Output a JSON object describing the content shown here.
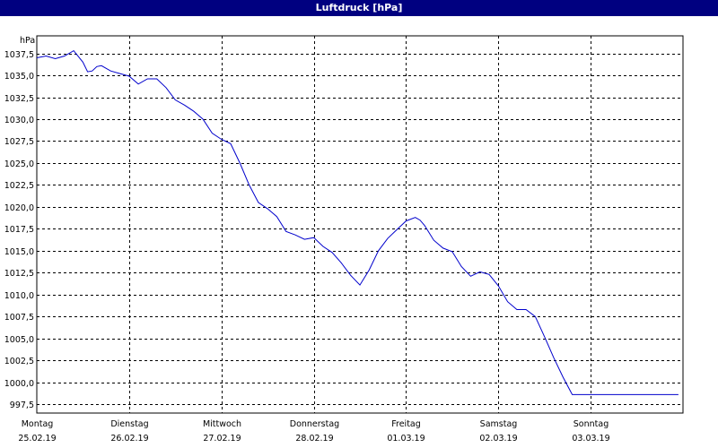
{
  "window": {
    "title": "Luftdruck [hPa]"
  },
  "colors": {
    "title_bar": "#000080",
    "line": "#0000cc",
    "grid": "#000000",
    "background": "#ffffff"
  },
  "chart_data": {
    "type": "line",
    "title": "Luftdruck [hPa]",
    "ylabel": "hPa",
    "xlabel": "",
    "grid": true,
    "grid_style": "dashed",
    "ylim": [
      996.5,
      1039.5
    ],
    "yticks": [
      997.5,
      1000.0,
      1002.5,
      1005.0,
      1007.5,
      1010.0,
      1012.5,
      1015.0,
      1017.5,
      1020.0,
      1022.5,
      1025.0,
      1027.5,
      1030.0,
      1032.5,
      1035.0,
      1037.5
    ],
    "ytick_labels": [
      "997,5",
      "1000,0",
      "1002,5",
      "1005,0",
      "1007,5",
      "1010,0",
      "1012,5",
      "1015,0",
      "1017,5",
      "1020,0",
      "1022,5",
      "1025,0",
      "1027,5",
      "1030,0",
      "1032,5",
      "1035,0",
      "1037,5"
    ],
    "xlim": [
      0,
      7
    ],
    "days": [
      {
        "weekday": "Montag",
        "date": "25.02.19"
      },
      {
        "weekday": "Dienstag",
        "date": "26.02.19"
      },
      {
        "weekday": "Mittwoch",
        "date": "27.02.19"
      },
      {
        "weekday": "Donnerstag",
        "date": "28.02.19"
      },
      {
        "weekday": "Freitag",
        "date": "01.03.19"
      },
      {
        "weekday": "Samstag",
        "date": "02.03.19"
      },
      {
        "weekday": "Sonntag",
        "date": "03.03.19"
      }
    ],
    "series": [
      {
        "x": [
          0,
          0.1,
          0.2,
          0.3,
          0.4,
          0.5,
          0.55,
          0.6,
          0.65,
          0.7,
          0.8,
          0.9,
          1.0,
          1.1,
          1.2,
          1.3,
          1.4,
          1.5,
          1.6,
          1.7,
          1.8,
          1.9,
          2.0,
          2.1,
          2.2,
          2.3,
          2.4,
          2.5,
          2.6,
          2.7,
          2.8,
          2.9,
          3.0,
          3.1,
          3.2,
          3.3,
          3.4,
          3.5,
          3.6,
          3.7,
          3.8,
          3.9,
          4.0,
          4.1,
          4.15,
          4.2,
          4.3,
          4.4,
          4.5,
          4.6,
          4.7,
          4.8,
          4.9,
          5.0,
          5.1,
          5.2,
          5.3,
          5.4,
          5.5,
          5.6,
          5.7,
          5.8,
          5.9,
          6.0,
          6.1,
          6.2,
          6.3,
          6.4,
          6.5,
          6.6,
          6.7,
          6.8,
          6.9,
          6.95
        ],
        "y": [
          1037.0,
          1037.2,
          1036.9,
          1037.2,
          1037.8,
          1036.5,
          1035.4,
          1035.5,
          1036.0,
          1036.1,
          1035.5,
          1035.2,
          1034.9,
          1034.0,
          1034.6,
          1034.6,
          1033.6,
          1032.2,
          1031.6,
          1030.9,
          1030.0,
          1028.4,
          1027.7,
          1027.2,
          1025.0,
          1022.5,
          1020.5,
          1019.8,
          1018.9,
          1017.2,
          1016.8,
          1016.3,
          1016.5,
          1015.5,
          1014.8,
          1013.6,
          1012.2,
          1011.1,
          1012.8,
          1015.0,
          1016.4,
          1017.4,
          1018.4,
          1018.8,
          1018.5,
          1017.9,
          1016.2,
          1015.3,
          1014.9,
          1013.2,
          1012.1,
          1012.6,
          1012.3,
          1011.0,
          1009.2,
          1008.3,
          1008.3,
          1007.5,
          1005.2,
          1002.8,
          1000.6,
          998.6,
          998.6,
          998.6,
          998.6,
          998.6,
          998.6,
          998.6,
          998.6,
          998.6,
          998.6,
          998.6,
          998.6,
          998.6
        ]
      }
    ]
  }
}
